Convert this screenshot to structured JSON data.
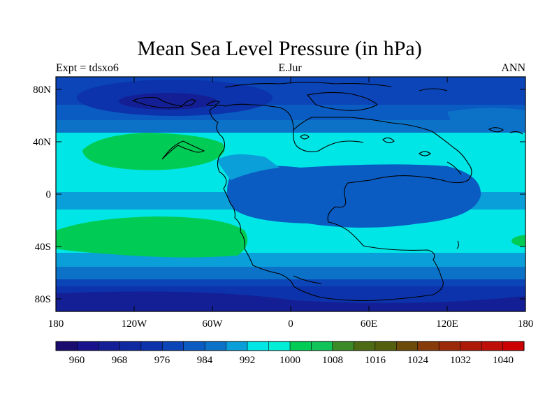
{
  "title": "Mean Sea Level Pressure (in hPa)",
  "left_subtitle": "Expt = tdsxo6",
  "center_subtitle": "E.Jur",
  "right_subtitle": "ANN",
  "lat_labels": [
    "80N",
    "40N",
    "0",
    "40S",
    "80S"
  ],
  "lon_labels": [
    "180",
    "120W",
    "60W",
    "0",
    "60E",
    "120E",
    "180"
  ],
  "colorbar": {
    "colors": [
      "#1a0b6e",
      "#17128c",
      "#141f95",
      "#0f2aa0",
      "#0c33ab",
      "#0b45b8",
      "#0b5cc2",
      "#0c72c8",
      "#0a9fd8",
      "#00e6e6",
      "#00eed8",
      "#00cc55",
      "#11c45a",
      "#3c8a28",
      "#4d6b14",
      "#55600f",
      "#6b4a0a",
      "#873a0a",
      "#9a2a0a",
      "#ad1a08",
      "#be0f08",
      "#cc0000"
    ],
    "labels": [
      "960",
      "968",
      "976",
      "984",
      "992",
      "1000",
      "1008",
      "1016",
      "1024",
      "1032",
      "1040"
    ]
  },
  "chart_data": {
    "type": "heatmap",
    "title": "Mean Sea Level Pressure (in hPa)",
    "units": "hPa",
    "experiment": "tdsxo6",
    "period": "E.Jur",
    "season": "ANN",
    "lon_range": [
      -180,
      180
    ],
    "lat_range": [
      -90,
      90
    ],
    "contour_levels": [
      960,
      964,
      968,
      972,
      976,
      980,
      984,
      988,
      992,
      996,
      1000,
      1004,
      1008,
      1012,
      1016,
      1020,
      1024,
      1028,
      1032,
      1036,
      1040
    ]
  }
}
